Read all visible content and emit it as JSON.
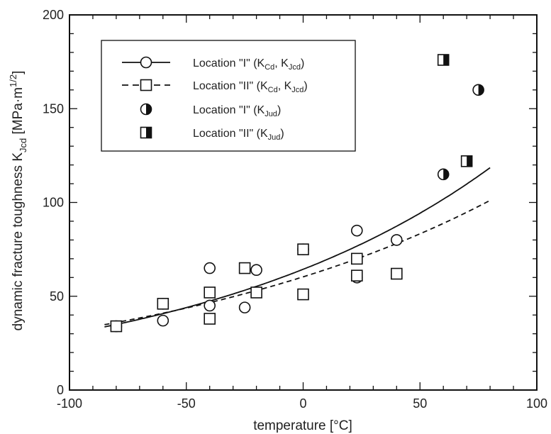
{
  "chart_data": {
    "type": "scatter",
    "xlabel": "temperature [°C]",
    "ylabel": {
      "main": "dynamic fracture toughness K",
      "sub": "Jcd",
      "unit_open": " [MPa·m",
      "unit_sup": "1/2",
      "unit_close": "]"
    },
    "xlim": [
      -100,
      100
    ],
    "ylim": [
      0,
      200
    ],
    "xticks": [
      -100,
      -50,
      0,
      50,
      100
    ],
    "yticks": [
      0,
      50,
      100,
      150,
      200
    ],
    "grid": false,
    "legend_position": "upper-left",
    "legend": [
      {
        "prefix": "Location \"I\" (K",
        "sub1": "Cd",
        "mid": ", K",
        "sub2": "Jcd",
        "suffix": ")",
        "marker": "open-circle",
        "line": "solid"
      },
      {
        "prefix": "Location \"II\" (K",
        "sub1": "Cd",
        "mid": ", K",
        "sub2": "Jcd",
        "suffix": ")",
        "marker": "open-square",
        "line": "dashed"
      },
      {
        "prefix": "Location \"I\" (K",
        "sub1": "Jud",
        "mid": "",
        "sub2": "",
        "suffix": ")",
        "marker": "half-filled-circle",
        "line": "none"
      },
      {
        "prefix": "Location \"II\" (K",
        "sub1": "Jud",
        "mid": "",
        "sub2": "",
        "suffix": ")",
        "marker": "half-filled-square",
        "line": "none"
      }
    ],
    "series": [
      {
        "name": "Location \"I\" (KCd, KJcd)",
        "marker": "open-circle",
        "points": [
          [
            -80,
            34
          ],
          [
            -60,
            46
          ],
          [
            -60,
            37
          ],
          [
            -40,
            65
          ],
          [
            -40,
            45
          ],
          [
            -25,
            44
          ],
          [
            -20,
            64
          ],
          [
            0,
            75
          ],
          [
            23,
            85
          ],
          [
            23,
            60
          ],
          [
            40,
            80
          ]
        ]
      },
      {
        "name": "Location \"II\" (KCd, KJcd)",
        "marker": "open-square",
        "points": [
          [
            -80,
            34
          ],
          [
            -60,
            46
          ],
          [
            -40,
            52
          ],
          [
            -40,
            38
          ],
          [
            -25,
            65
          ],
          [
            -20,
            52
          ],
          [
            0,
            75
          ],
          [
            0,
            51
          ],
          [
            23,
            70
          ],
          [
            23,
            61
          ],
          [
            40,
            62
          ]
        ]
      },
      {
        "name": "Location \"I\" (KJud)",
        "marker": "half-filled-circle",
        "points": [
          [
            60,
            115
          ],
          [
            75,
            160
          ]
        ]
      },
      {
        "name": "Location \"II\" (KJud)",
        "marker": "half-filled-square",
        "points": [
          [
            60,
            176
          ],
          [
            70,
            122
          ]
        ]
      }
    ],
    "fits": [
      {
        "name": "Location \"I\" fit",
        "style": "solid",
        "x_range": [
          -85,
          80
        ],
        "a": 64.37,
        "b": 0.00763
      },
      {
        "name": "Location \"II\" fit",
        "style": "dashed",
        "x_range": [
          -85,
          80
        ],
        "a": 60.34,
        "b": 0.00645
      }
    ]
  },
  "colors": {
    "ink": "#111111",
    "background": "#ffffff"
  }
}
